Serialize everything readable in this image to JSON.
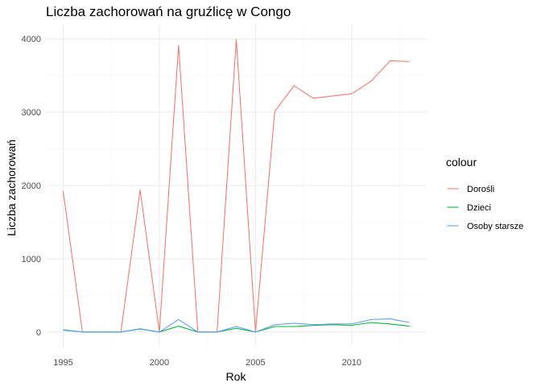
{
  "chart_data": {
    "type": "line",
    "title": "Liczba zachorowań na gruźlicę w Congo",
    "xlabel": "Rok",
    "ylabel": "Liczba zachorowań",
    "legend_title": "colour",
    "legend_position": "right",
    "grid": true,
    "xlim": [
      1995,
      2013
    ],
    "ylim": [
      0,
      4000
    ],
    "x_ticks": [
      1995,
      2000,
      2005,
      2010
    ],
    "y_ticks": [
      0,
      1000,
      2000,
      3000,
      4000
    ],
    "x": [
      1995,
      1996,
      1997,
      1998,
      1999,
      2000,
      2001,
      2002,
      2003,
      2004,
      2005,
      2006,
      2007,
      2008,
      2009,
      2010,
      2011,
      2012,
      2013
    ],
    "series": [
      {
        "name": "Dorośli",
        "color": "#F8766D",
        "values": [
          1920,
          0,
          0,
          0,
          1940,
          0,
          3910,
          0,
          0,
          3990,
          0,
          3010,
          3360,
          3190,
          3220,
          3250,
          3420,
          3700,
          3690
        ]
      },
      {
        "name": "Dzieci",
        "color": "#00BA38",
        "values": [
          30,
          0,
          0,
          0,
          45,
          0,
          80,
          0,
          0,
          50,
          0,
          75,
          75,
          90,
          100,
          90,
          130,
          110,
          80
        ]
      },
      {
        "name": "Osoby starsze",
        "color": "#619CFF",
        "values": [
          25,
          0,
          0,
          0,
          40,
          0,
          170,
          0,
          0,
          75,
          0,
          100,
          120,
          100,
          110,
          110,
          170,
          180,
          130
        ]
      }
    ]
  }
}
